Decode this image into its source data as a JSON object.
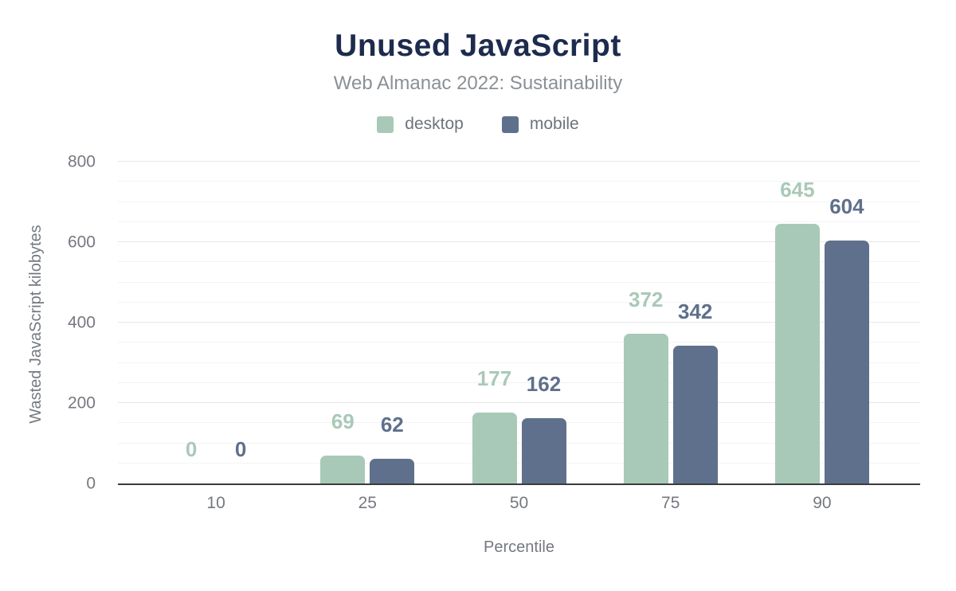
{
  "chart_data": {
    "type": "bar",
    "title": "Unused JavaScript",
    "subtitle": "Web Almanac 2022: Sustainability",
    "xlabel": "Percentile",
    "ylabel": "Wasted JavaScript kilobytes",
    "categories": [
      "10",
      "25",
      "50",
      "75",
      "90"
    ],
    "series": [
      {
        "name": "desktop",
        "color": "#a9c9b8",
        "values": [
          0,
          69,
          177,
          372,
          645
        ]
      },
      {
        "name": "mobile",
        "color": "#5f708c",
        "values": [
          0,
          62,
          162,
          342,
          604
        ]
      }
    ],
    "ylim": [
      0,
      800
    ],
    "yticks": [
      0,
      200,
      400,
      600,
      800
    ],
    "grid": {
      "on": true,
      "minor_step": 50,
      "major_step": 200
    },
    "legend_position": "top",
    "colors": {
      "title": "#1d2b4d",
      "axis_text": "#75797f",
      "axis_line": "#393c3f"
    }
  }
}
